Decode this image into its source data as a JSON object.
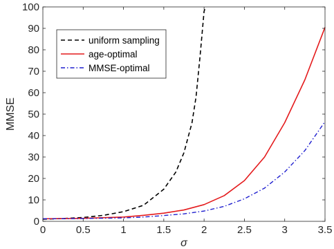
{
  "chart_data": {
    "type": "line",
    "title": "",
    "xlabel": "σ",
    "ylabel": "MMSE",
    "xlim": [
      0,
      3.5
    ],
    "ylim": [
      0,
      100
    ],
    "xticks": [
      0,
      0.5,
      1,
      1.5,
      2,
      2.5,
      3,
      3.5
    ],
    "xtick_labels": [
      "0",
      "0.5",
      "1",
      "1.5",
      "2",
      "2.5",
      "3",
      "3.5"
    ],
    "yticks": [
      0,
      10,
      20,
      30,
      40,
      50,
      60,
      70,
      80,
      90,
      100
    ],
    "ytick_labels": [
      "0",
      "10",
      "20",
      "30",
      "40",
      "50",
      "60",
      "70",
      "80",
      "90",
      "100"
    ],
    "grid": false,
    "legend_position": "top-left",
    "series": [
      {
        "name": "uniform sampling",
        "color": "#000000",
        "dash": "dashed",
        "x": [
          0,
          0.25,
          0.5,
          0.75,
          1.0,
          1.25,
          1.5,
          1.65,
          1.75,
          1.85,
          1.9,
          1.95,
          2.0,
          2.02
        ],
        "y": [
          1.0,
          1.3,
          1.8,
          2.8,
          4.5,
          7.5,
          15,
          23,
          32,
          46,
          58,
          77,
          98,
          100
        ]
      },
      {
        "name": "age-optimal",
        "color": "#e41a1c",
        "dash": "solid",
        "x": [
          0,
          0.5,
          1.0,
          1.25,
          1.5,
          1.75,
          2.0,
          2.25,
          2.5,
          2.75,
          3.0,
          3.25,
          3.5
        ],
        "y": [
          1.2,
          1.4,
          2.0,
          2.8,
          3.8,
          5.3,
          7.8,
          12,
          19,
          30,
          46,
          66,
          90.5
        ]
      },
      {
        "name": "MMSE-optimal",
        "color": "#1f1fcf",
        "dash": "dashdot",
        "x": [
          0,
          0.5,
          1.0,
          1.25,
          1.5,
          1.75,
          2.0,
          2.25,
          2.5,
          2.75,
          3.0,
          3.25,
          3.5
        ],
        "y": [
          1.2,
          1.3,
          1.6,
          2.0,
          2.7,
          3.5,
          4.8,
          7.0,
          10.5,
          15.5,
          23,
          33,
          46.5
        ]
      }
    ]
  }
}
